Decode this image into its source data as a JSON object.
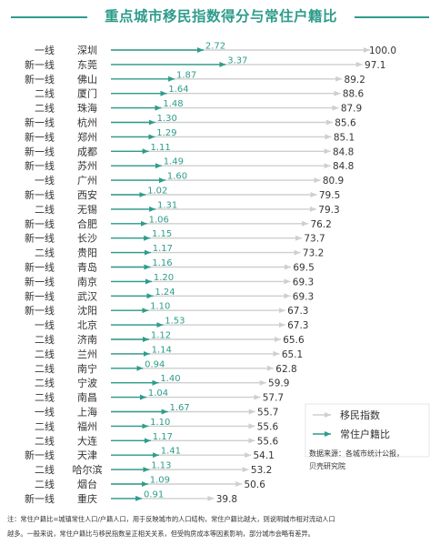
{
  "title": "重点城市移民指数得分与常住户籍比",
  "legend": {
    "migration_label": "移民指数",
    "ratio_label": "常住户籍比"
  },
  "source": {
    "line1": "数据来源：各城市统计公报，",
    "line2": "贝壳研究院"
  },
  "note": {
    "line1": "注：常住户籍比=城镇常住人口/户籍人口，用于反映城市的人口结构，常住户籍比越大，则说明城市相对流动人口",
    "line2": "越多。一般来说，常住户籍比与移民指数呈正相关关系，但受购房成本等因素影响，部分城市会略有差异。"
  },
  "colors": {
    "ratio": "#2e9c8b",
    "migration": "#cfcfcf",
    "text": "#333333"
  },
  "chart_data": {
    "type": "bar",
    "title": "重点城市移民指数得分与常住户籍比",
    "series": [
      {
        "name": "移民指数",
        "values": [
          100.0,
          97.1,
          89.2,
          88.6,
          87.9,
          85.6,
          85.1,
          84.8,
          84.8,
          80.9,
          79.5,
          79.3,
          76.2,
          73.7,
          73.2,
          69.5,
          69.3,
          69.3,
          67.3,
          67.3,
          65.6,
          65.1,
          62.8,
          59.9,
          57.7,
          55.7,
          55.6,
          55.6,
          54.1,
          53.2,
          50.6,
          39.8
        ]
      },
      {
        "name": "常住户籍比",
        "values": [
          2.72,
          3.37,
          1.87,
          1.64,
          1.48,
          1.3,
          1.29,
          1.11,
          1.49,
          1.6,
          1.02,
          1.31,
          1.06,
          1.15,
          1.17,
          1.16,
          1.2,
          1.24,
          1.1,
          1.53,
          1.12,
          1.14,
          0.94,
          1.4,
          1.04,
          1.67,
          1.1,
          1.17,
          1.41,
          1.13,
          1.09,
          0.91
        ]
      }
    ],
    "rows": [
      {
        "tier": "一线",
        "city": "深圳",
        "migration": "100.0",
        "ratio": "2.72"
      },
      {
        "tier": "新一线",
        "city": "东莞",
        "migration": "97.1",
        "ratio": "3.37"
      },
      {
        "tier": "新一线",
        "city": "佛山",
        "migration": "89.2",
        "ratio": "1.87"
      },
      {
        "tier": "二线",
        "city": "厦门",
        "migration": "88.6",
        "ratio": "1.64"
      },
      {
        "tier": "二线",
        "city": "珠海",
        "migration": "87.9",
        "ratio": "1.48"
      },
      {
        "tier": "新一线",
        "city": "杭州",
        "migration": "85.6",
        "ratio": "1.30"
      },
      {
        "tier": "新一线",
        "city": "郑州",
        "migration": "85.1",
        "ratio": "1.29"
      },
      {
        "tier": "新一线",
        "city": "成都",
        "migration": "84.8",
        "ratio": "1.11"
      },
      {
        "tier": "新一线",
        "city": "苏州",
        "migration": "84.8",
        "ratio": "1.49"
      },
      {
        "tier": "一线",
        "city": "广州",
        "migration": "80.9",
        "ratio": "1.60"
      },
      {
        "tier": "新一线",
        "city": "西安",
        "migration": "79.5",
        "ratio": "1.02"
      },
      {
        "tier": "二线",
        "city": "无锡",
        "migration": "79.3",
        "ratio": "1.31"
      },
      {
        "tier": "新一线",
        "city": "合肥",
        "migration": "76.2",
        "ratio": "1.06"
      },
      {
        "tier": "新一线",
        "city": "长沙",
        "migration": "73.7",
        "ratio": "1.15"
      },
      {
        "tier": "二线",
        "city": "贵阳",
        "migration": "73.2",
        "ratio": "1.17"
      },
      {
        "tier": "新一线",
        "city": "青岛",
        "migration": "69.5",
        "ratio": "1.16"
      },
      {
        "tier": "新一线",
        "city": "南京",
        "migration": "69.3",
        "ratio": "1.20"
      },
      {
        "tier": "新一线",
        "city": "武汉",
        "migration": "69.3",
        "ratio": "1.24"
      },
      {
        "tier": "新一线",
        "city": "沈阳",
        "migration": "67.3",
        "ratio": "1.10"
      },
      {
        "tier": "一线",
        "city": "北京",
        "migration": "67.3",
        "ratio": "1.53"
      },
      {
        "tier": "二线",
        "city": "济南",
        "migration": "65.6",
        "ratio": "1.12"
      },
      {
        "tier": "二线",
        "city": "兰州",
        "migration": "65.1",
        "ratio": "1.14"
      },
      {
        "tier": "二线",
        "city": "南宁",
        "migration": "62.8",
        "ratio": "0.94"
      },
      {
        "tier": "二线",
        "city": "宁波",
        "migration": "59.9",
        "ratio": "1.40"
      },
      {
        "tier": "二线",
        "city": "南昌",
        "migration": "57.7",
        "ratio": "1.04"
      },
      {
        "tier": "一线",
        "city": "上海",
        "migration": "55.7",
        "ratio": "1.67"
      },
      {
        "tier": "二线",
        "city": "福州",
        "migration": "55.6",
        "ratio": "1.10"
      },
      {
        "tier": "二线",
        "city": "大连",
        "migration": "55.6",
        "ratio": "1.17"
      },
      {
        "tier": "新一线",
        "city": "天津",
        "migration": "54.1",
        "ratio": "1.41"
      },
      {
        "tier": "二线",
        "city": "哈尔滨",
        "migration": "53.2",
        "ratio": "1.13"
      },
      {
        "tier": "二线",
        "city": "烟台",
        "migration": "50.6",
        "ratio": "1.09"
      },
      {
        "tier": "新一线",
        "city": "重庆",
        "migration": "39.8",
        "ratio": "0.91"
      }
    ]
  }
}
